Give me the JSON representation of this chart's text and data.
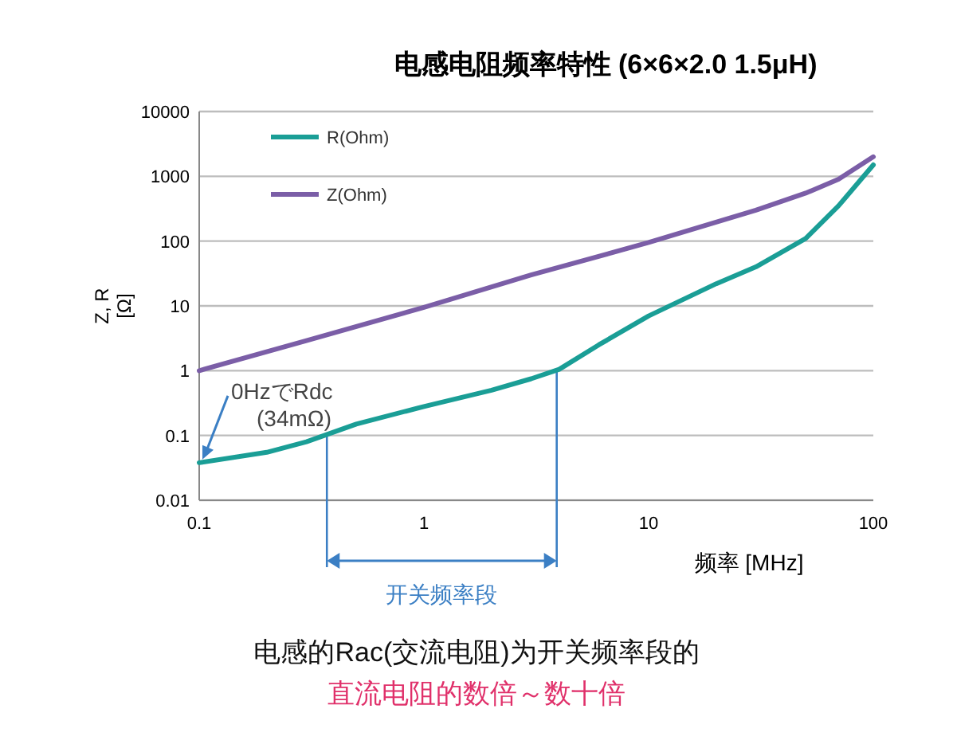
{
  "chart_data": {
    "type": "line",
    "title": "电感电阻频率特性 (6×6×2.0 1.5μH)",
    "xlabel": "频率 [MHz]",
    "ylabel": "Z, R [Ω]",
    "log": "xy",
    "grid": "y",
    "legend": "top left",
    "line_style": "solid",
    "marker": "none",
    "xlim": [
      0.1,
      100
    ],
    "xticks": [
      0.1,
      1,
      10,
      100
    ],
    "ylim": [
      0.01,
      10000
    ],
    "yticks": [
      0.01,
      0.1,
      1,
      10,
      100,
      1000,
      10000
    ],
    "series": [
      {
        "name": "R(Ohm)",
        "color": "#1a9e96",
        "x": [
          0.1,
          0.2,
          0.3,
          0.5,
          1,
          2,
          3,
          4,
          6,
          10,
          20,
          30,
          50,
          70,
          100
        ],
        "values": [
          0.038,
          0.055,
          0.08,
          0.15,
          0.28,
          0.5,
          0.75,
          1.05,
          2.5,
          7,
          22,
          40,
          110,
          350,
          1500
        ]
      },
      {
        "name": "Z(Ohm)",
        "color": "#7b5ea7",
        "x": [
          0.1,
          0.3,
          1,
          3,
          10,
          30,
          50,
          70,
          100
        ],
        "values": [
          1,
          2.9,
          9.5,
          30,
          95,
          300,
          550,
          900,
          2000
        ]
      }
    ],
    "ref_lines": [
      {
        "axis": "x",
        "value": 0.37,
        "color": "#3b7fc4"
      },
      {
        "axis": "x",
        "value": 3.9,
        "color": "#3b7fc4"
      }
    ],
    "annotations": [
      {
        "text": "0HzでRdc\n(34mΩ)",
        "x": 0.1,
        "y": 0.038
      },
      "开关频率段",
      "电感的Rac(交流电阻)为开关频率段的",
      "直流电阻的数倍～数十倍"
    ]
  }
}
